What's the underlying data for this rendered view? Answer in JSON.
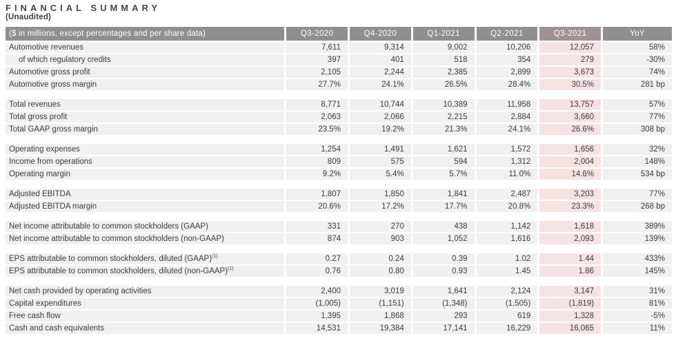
{
  "page": {
    "title": "FINANCIAL SUMMARY",
    "subtitle": "(Unaudited)"
  },
  "table": {
    "left_header": "($ in millions, except percentages and per share data)",
    "columns": [
      "Q3-2020",
      "Q4-2020",
      "Q1-2021",
      "Q2-2021",
      "Q3-2021",
      "YoY"
    ],
    "highlight_column": "Q3-2021",
    "colors": {
      "header_bg": "#8f8f8f",
      "header_highlight_bg": "#a09194",
      "header_text": "#ffffff",
      "row_bg": "#f0f0f0",
      "highlight_cell_bg": "#f6e2e3",
      "text": "#3b3b3b"
    },
    "sections": [
      {
        "rows": [
          {
            "label": "Automotive revenues",
            "values": [
              "7,611",
              "9,314",
              "9,002",
              "10,206",
              "12,057",
              "58%"
            ]
          },
          {
            "label": "of which regulatory credits",
            "indent": true,
            "values": [
              "397",
              "401",
              "518",
              "354",
              "279",
              "-30%"
            ]
          },
          {
            "label": "Automotive gross profit",
            "values": [
              "2,105",
              "2,244",
              "2,385",
              "2,899",
              "3,673",
              "74%"
            ]
          },
          {
            "label": "Automotive gross margin",
            "values": [
              "27.7%",
              "24.1%",
              "26.5%",
              "28.4%",
              "30.5%",
              "281 bp"
            ]
          }
        ]
      },
      {
        "rows": [
          {
            "label": "Total revenues",
            "values": [
              "8,771",
              "10,744",
              "10,389",
              "11,958",
              "13,757",
              "57%"
            ]
          },
          {
            "label": "Total gross profit",
            "values": [
              "2,063",
              "2,066",
              "2,215",
              "2,884",
              "3,660",
              "77%"
            ]
          },
          {
            "label": "Total GAAP gross margin",
            "values": [
              "23.5%",
              "19.2%",
              "21.3%",
              "24.1%",
              "26.6%",
              "308 bp"
            ]
          }
        ]
      },
      {
        "rows": [
          {
            "label": "Operating expenses",
            "values": [
              "1,254",
              "1,491",
              "1,621",
              "1,572",
              "1,656",
              "32%"
            ]
          },
          {
            "label": "Income from operations",
            "values": [
              "809",
              "575",
              "594",
              "1,312",
              "2,004",
              "148%"
            ]
          },
          {
            "label": "Operating margin",
            "values": [
              "9.2%",
              "5.4%",
              "5.7%",
              "11.0%",
              "14.6%",
              "534 bp"
            ]
          }
        ]
      },
      {
        "rows": [
          {
            "label": "Adjusted EBITDA",
            "values": [
              "1,807",
              "1,850",
              "1,841",
              "2,487",
              "3,203",
              "77%"
            ]
          },
          {
            "label": "Adjusted EBITDA margin",
            "values": [
              "20.6%",
              "17.2%",
              "17.7%",
              "20.8%",
              "23.3%",
              "268 bp"
            ]
          }
        ]
      },
      {
        "rows": [
          {
            "label": "Net income attributable to common stockholders (GAAP)",
            "values": [
              "331",
              "270",
              "438",
              "1,142",
              "1,618",
              "389%"
            ]
          },
          {
            "label": "Net income attributable to common stockholders (non-GAAP)",
            "values": [
              "874",
              "903",
              "1,052",
              "1,616",
              "2,093",
              "139%"
            ]
          }
        ]
      },
      {
        "rows": [
          {
            "label": "EPS attributable to common stockholders, diluted (GAAP)",
            "footnote": "(1)",
            "values": [
              "0.27",
              "0.24",
              "0.39",
              "1.02",
              "1.44",
              "433%"
            ]
          },
          {
            "label": "EPS attributable to common stockholders, diluted (non-GAAP)",
            "footnote": "(1)",
            "values": [
              "0.76",
              "0.80",
              "0.93",
              "1.45",
              "1.86",
              "145%"
            ]
          }
        ]
      },
      {
        "rows": [
          {
            "label": "Net cash provided by operating activities",
            "values": [
              "2,400",
              "3,019",
              "1,641",
              "2,124",
              "3,147",
              "31%"
            ]
          },
          {
            "label": "Capital expenditures",
            "values": [
              "(1,005)",
              "(1,151)",
              "(1,348)",
              "(1,505)",
              "(1,819)",
              "81%"
            ]
          },
          {
            "label": "Free cash flow",
            "values": [
              "1,395",
              "1,868",
              "293",
              "619",
              "1,328",
              "-5%"
            ]
          },
          {
            "label": "Cash and cash equivalents",
            "values": [
              "14,531",
              "19,384",
              "17,141",
              "16,229",
              "16,065",
              "11%"
            ]
          }
        ]
      }
    ]
  }
}
